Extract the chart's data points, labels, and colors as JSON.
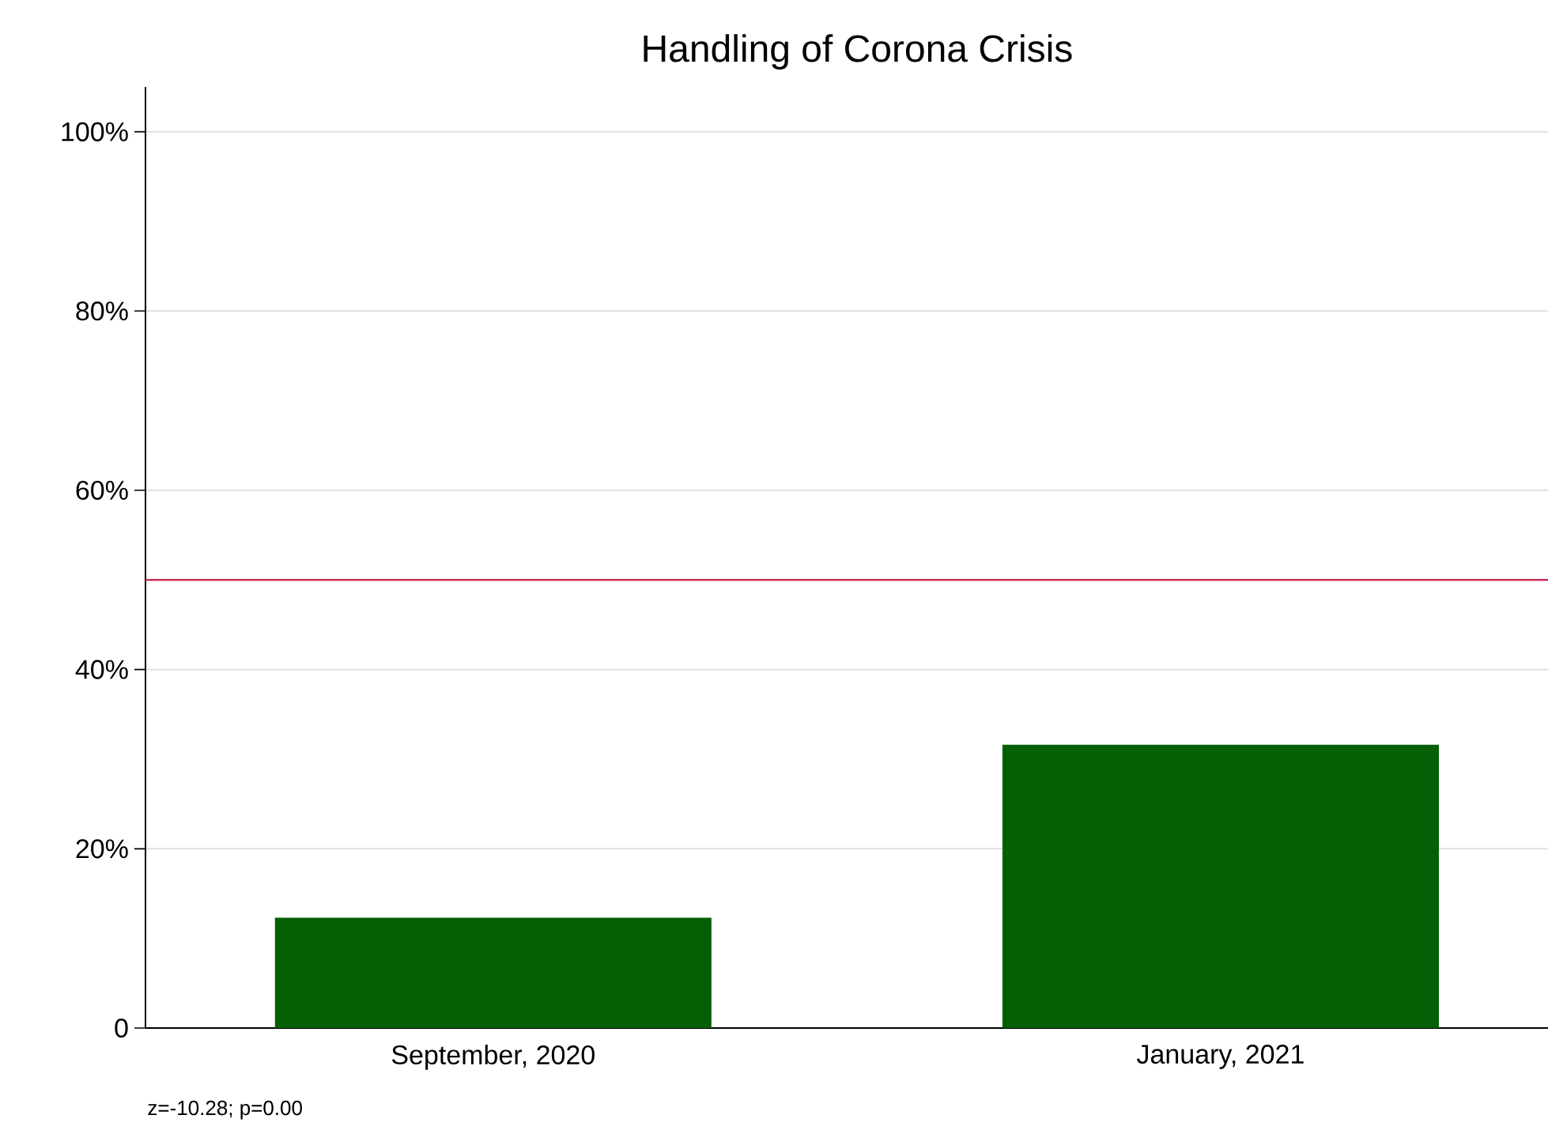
{
  "chart_data": {
    "type": "bar",
    "title": "Handling of Corona Crisis",
    "categories": [
      "September, 2020",
      "January, 2021"
    ],
    "values": [
      12.3,
      31.6
    ],
    "color": "#055f05",
    "ylim": [
      0,
      105
    ],
    "yticks": [
      {
        "value": 0,
        "label": "0"
      },
      {
        "value": 20,
        "label": "20%"
      },
      {
        "value": 40,
        "label": "40%"
      },
      {
        "value": 60,
        "label": "60%"
      },
      {
        "value": 80,
        "label": "80%"
      },
      {
        "value": 100,
        "label": "100%"
      }
    ],
    "grid": "y",
    "ref_lines": [
      {
        "axis": "y",
        "value": 50,
        "color": "#c0103f"
      }
    ],
    "annotations": [
      "z=-10.28; p=0.00"
    ]
  }
}
